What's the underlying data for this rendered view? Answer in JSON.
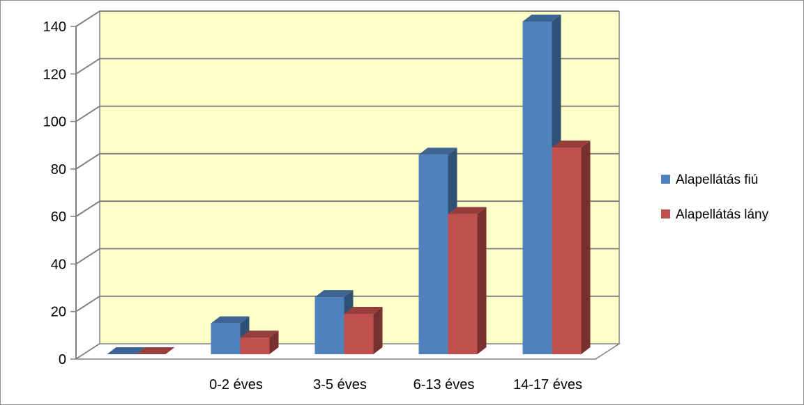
{
  "chart_data": {
    "type": "bar",
    "categories": [
      "",
      "0-2 éves",
      "3-5 éves",
      "6-13 éves",
      "14-17 éves"
    ],
    "series": [
      {
        "name": "Alapellátás fiú",
        "values": [
          0,
          13,
          24,
          84,
          140
        ],
        "color": "#4f81bd"
      },
      {
        "name": "Alapellátás lány",
        "values": [
          0,
          7,
          17,
          59,
          87
        ],
        "color": "#c0504d"
      }
    ],
    "ylim": [
      0,
      140
    ],
    "yticks": [
      0,
      20,
      40,
      60,
      80,
      100,
      120,
      140
    ],
    "grid": true,
    "legend_position": "right",
    "background": "#ffffc8"
  }
}
